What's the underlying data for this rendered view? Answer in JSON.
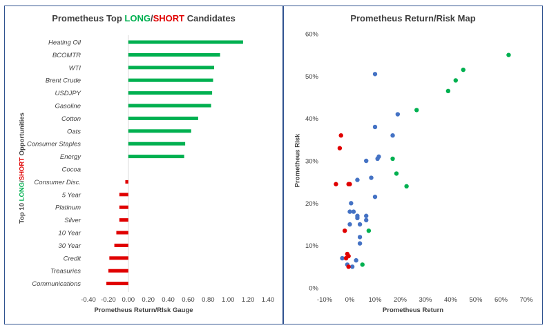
{
  "chart_data": [
    {
      "type": "bar",
      "orientation": "horizontal",
      "title_parts": [
        "Prometheus Top ",
        "LONG",
        "/",
        "SHORT",
        " Candidates"
      ],
      "xlabel": "Prometheus Return/RIsk Gauge",
      "ylabel_parts": [
        "Top 10 ",
        "LONG",
        "/",
        "SHORT",
        " Opportunities"
      ],
      "categories": [
        "Heating Oil",
        "BCOMTR",
        "WTI",
        "Brent Crude",
        "USDJPY",
        "Gasoline",
        "Cotton",
        "Oats",
        "Consumer Staples",
        "Energy",
        "Cocoa",
        "Consumer Disc.",
        "5 Year",
        "Platinum",
        "Silver",
        "10 Year",
        "30 Year",
        "Credit",
        "Treasuries",
        "Communications"
      ],
      "values": [
        1.15,
        0.92,
        0.86,
        0.85,
        0.84,
        0.83,
        0.7,
        0.63,
        0.57,
        0.56,
        0.0,
        -0.03,
        -0.09,
        -0.09,
        -0.09,
        -0.12,
        -0.14,
        -0.19,
        -0.2,
        -0.22
      ],
      "xlim": [
        -0.4,
        1.4
      ],
      "xticks": [
        "-0.40",
        "-0.20",
        "0.00",
        "0.20",
        "0.40",
        "0.60",
        "0.80",
        "1.00",
        "1.20",
        "1.40"
      ],
      "colors": {
        "long": "#00b050",
        "short": "#e00000"
      },
      "grid": false
    },
    {
      "type": "scatter",
      "title": "Prometheus Return/Risk Map",
      "xlabel": "Prometheus Return",
      "ylabel": "Prometheus Risk",
      "xlim": [
        -10,
        70
      ],
      "ylim": [
        0,
        60
      ],
      "xticks": [
        "-10%",
        "0%",
        "10%",
        "20%",
        "30%",
        "40%",
        "50%",
        "60%",
        "70%"
      ],
      "yticks": [
        "0%",
        "10%",
        "20%",
        "30%",
        "40%",
        "50%",
        "60%"
      ],
      "colors": {
        "green": "#00b050",
        "blue": "#4472c4",
        "red": "#e00000"
      },
      "series": [
        {
          "color_key": "green",
          "points": [
            [
              63,
              55
            ],
            [
              45,
              51.5
            ],
            [
              42,
              49
            ],
            [
              39,
              46.5
            ],
            [
              26.5,
              42
            ],
            [
              17,
              30.5
            ],
            [
              18.5,
              27
            ],
            [
              22.5,
              24
            ],
            [
              7.5,
              13.5
            ],
            [
              5,
              5.5
            ]
          ]
        },
        {
          "color_key": "blue",
          "points": [
            [
              10,
              50.5
            ],
            [
              19,
              41
            ],
            [
              10,
              38
            ],
            [
              17,
              36
            ],
            [
              11,
              30.5
            ],
            [
              11.5,
              31
            ],
            [
              6.5,
              30
            ],
            [
              8.5,
              26
            ],
            [
              3,
              25.5
            ],
            [
              10,
              21.5
            ],
            [
              0.5,
              20
            ],
            [
              0,
              18
            ],
            [
              1.5,
              18
            ],
            [
              3,
              17
            ],
            [
              3,
              16.5
            ],
            [
              6.5,
              17
            ],
            [
              6.5,
              16
            ],
            [
              4,
              15
            ],
            [
              0,
              15
            ],
            [
              4,
              12
            ],
            [
              4,
              10.5
            ],
            [
              -3,
              7
            ],
            [
              -1,
              5.5
            ],
            [
              1,
              5
            ],
            [
              2.5,
              6.5
            ]
          ]
        },
        {
          "color_key": "red",
          "points": [
            [
              -3.5,
              36
            ],
            [
              -4,
              33
            ],
            [
              -5.5,
              24.5
            ],
            [
              -0.5,
              24.5
            ],
            [
              0,
              24.5
            ],
            [
              -2,
              13.5
            ],
            [
              -1,
              8
            ],
            [
              -0.5,
              7.5
            ],
            [
              -1.5,
              7
            ],
            [
              -0.5,
              5
            ]
          ]
        }
      ]
    }
  ]
}
